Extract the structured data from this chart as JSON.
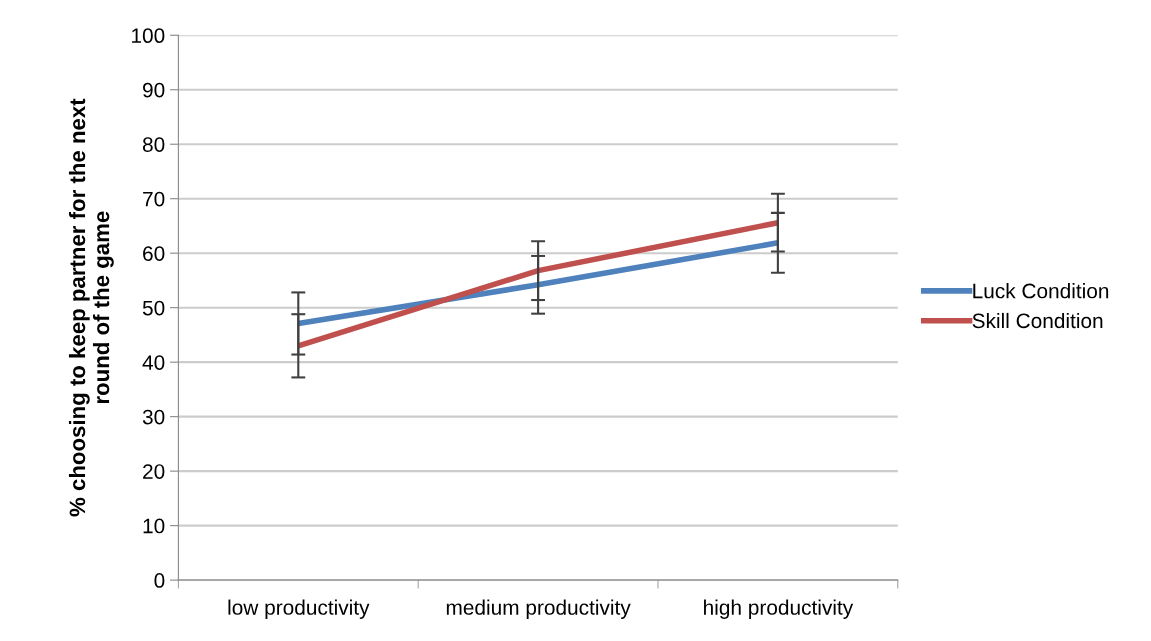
{
  "chart_data": {
    "type": "line",
    "ylabel": "% choosing to keep partner for the next\nround of the game",
    "categories": [
      "low productivity",
      "medium productivity",
      "high productivity"
    ],
    "series": [
      {
        "name": "Luck Condition",
        "color": "#4f81bd",
        "values": [
          47.1,
          54.2,
          61.9
        ],
        "errors": [
          5.7,
          5.3,
          5.5
        ]
      },
      {
        "name": "Skill Condition",
        "color": "#c0504d",
        "values": [
          43.0,
          56.8,
          65.6
        ],
        "errors": [
          5.8,
          5.4,
          5.3
        ]
      }
    ],
    "ylim": [
      0,
      100
    ],
    "yticks": [
      0,
      10,
      20,
      30,
      40,
      50,
      60,
      70,
      80,
      90,
      100
    ],
    "grid": "y",
    "legend": "right",
    "marker": "none",
    "line_style": "solid"
  }
}
